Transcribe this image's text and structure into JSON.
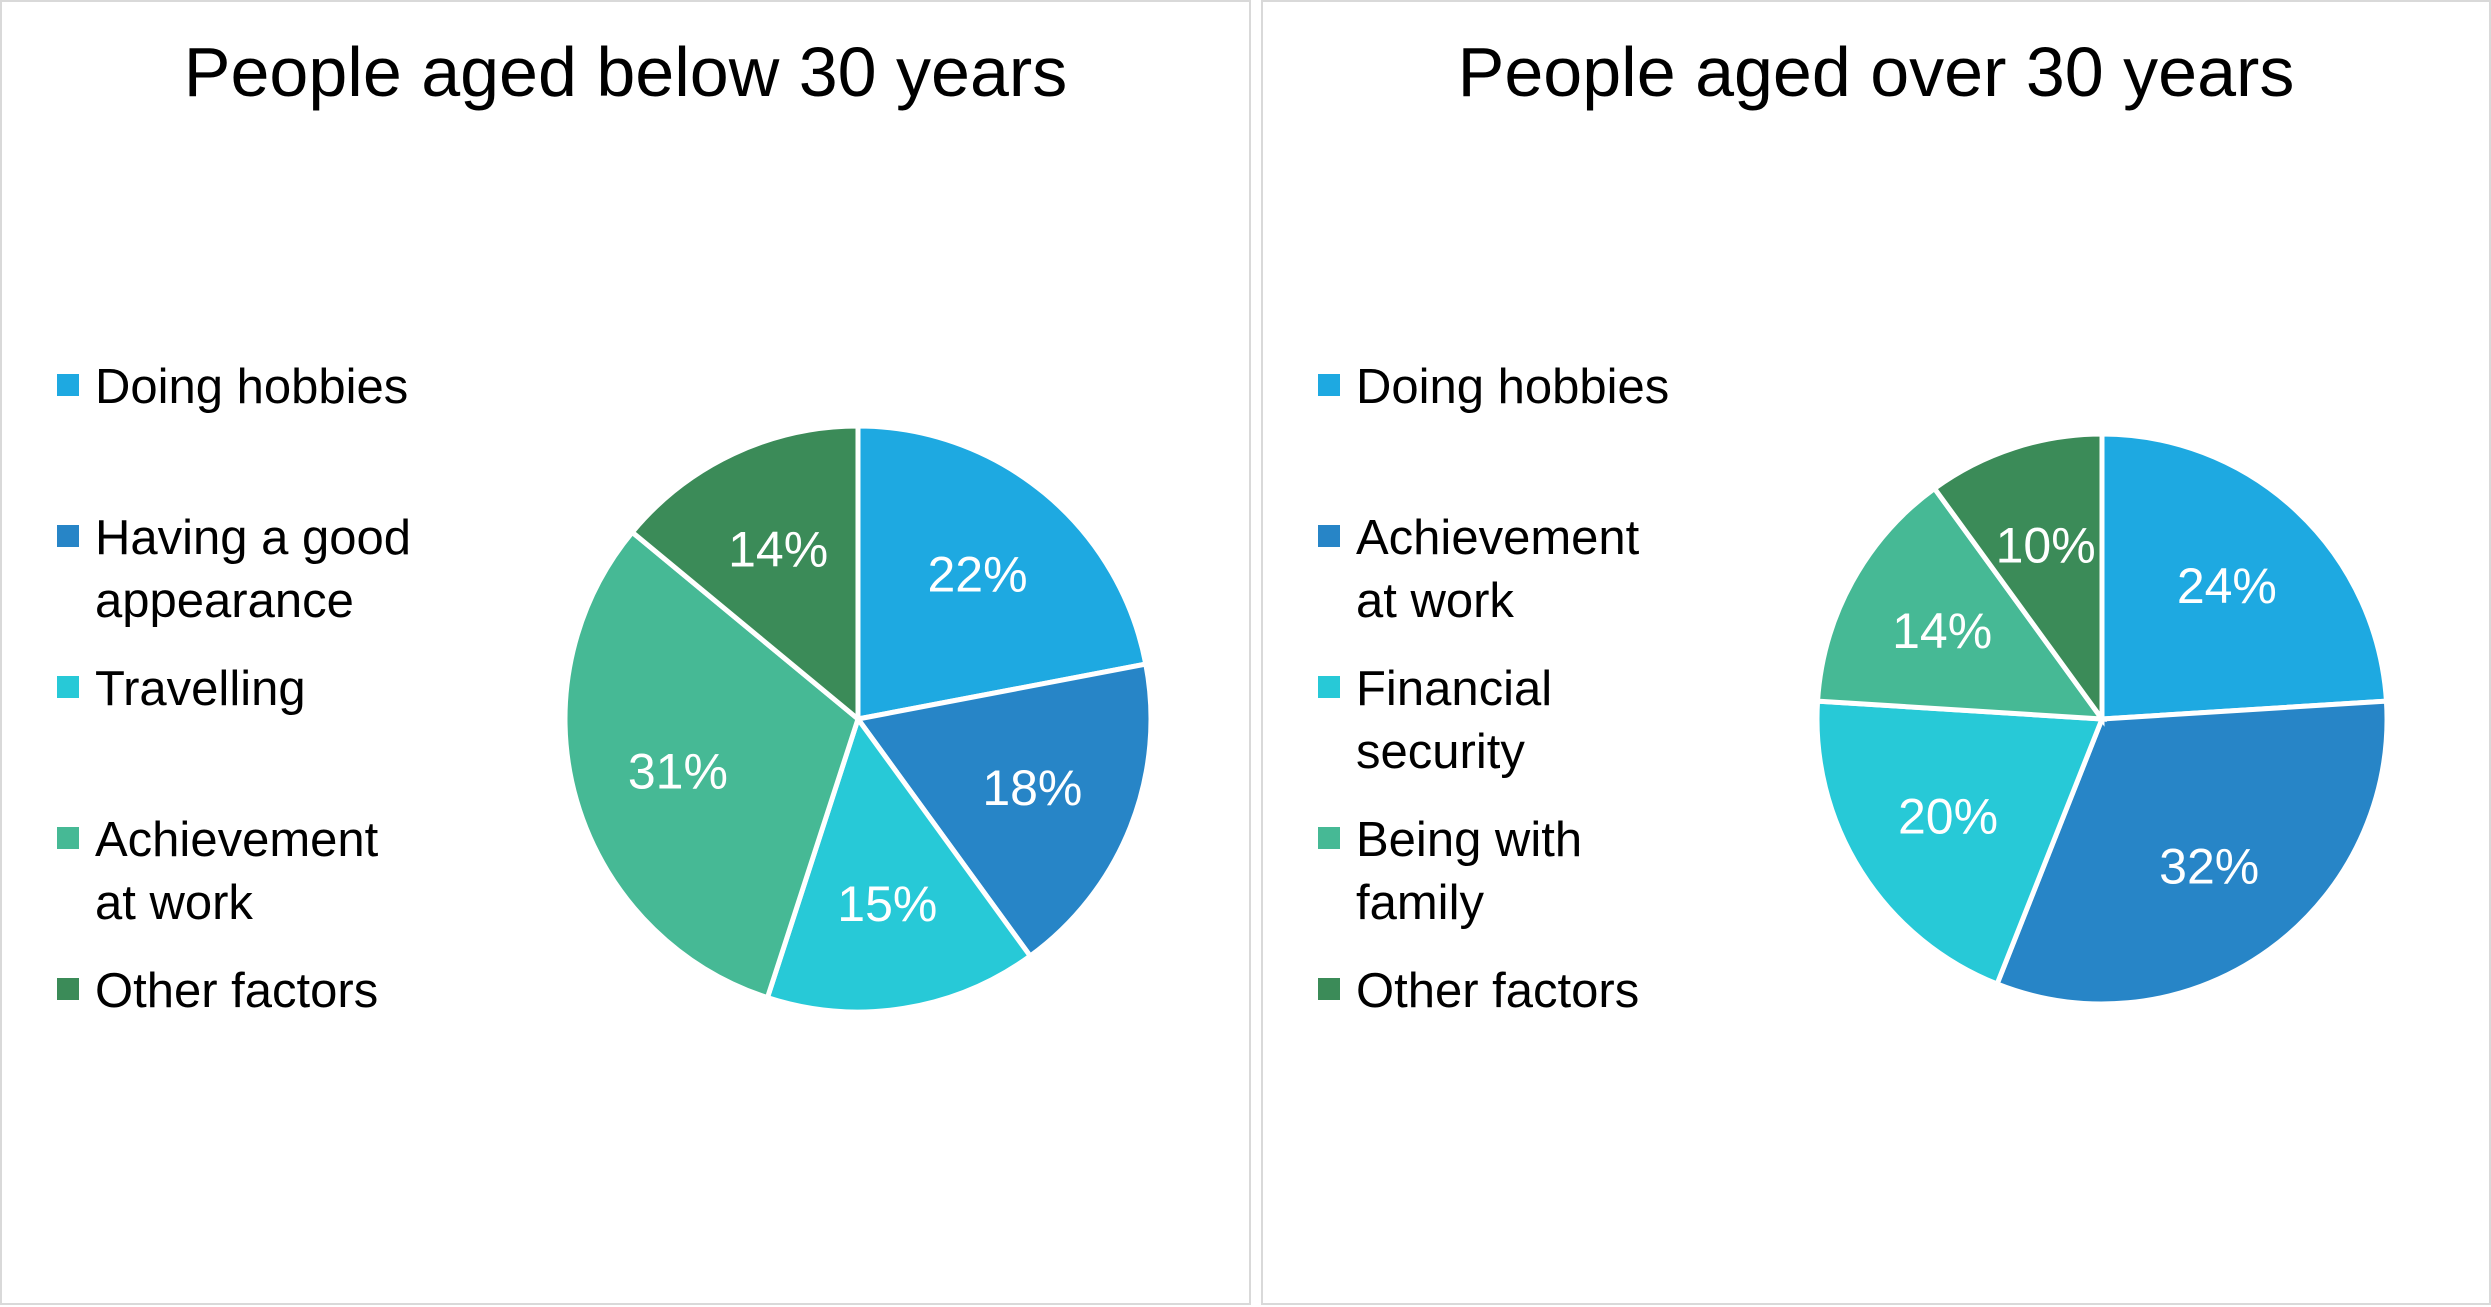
{
  "chart_data": [
    {
      "type": "pie",
      "title": "People aged below 30 years",
      "categories": [
        "Doing hobbies",
        "Having a good appearance",
        "Travelling",
        "Achievement at work",
        "Other factors"
      ],
      "values": [
        22,
        18,
        15,
        31,
        14
      ],
      "value_labels": [
        "22%",
        "18%",
        "15%",
        "31%",
        "14%"
      ],
      "colors": [
        "#1ea9e1",
        "#2785c7",
        "#27c9d7",
        "#46b995",
        "#3b8b58"
      ],
      "legend_placement": "left"
    },
    {
      "type": "pie",
      "title": "People aged over 30 years",
      "categories": [
        "Doing hobbies",
        "Achievement at work",
        "Financial security",
        "Being with family",
        "Other factors"
      ],
      "values": [
        24,
        32,
        20,
        14,
        10
      ],
      "value_labels": [
        "24%",
        "32%",
        "20%",
        "14%",
        "10%"
      ],
      "colors": [
        "#1ea9e1",
        "#2785c7",
        "#27c9d7",
        "#46b995",
        "#3b8b58"
      ],
      "legend_placement": "left"
    }
  ]
}
